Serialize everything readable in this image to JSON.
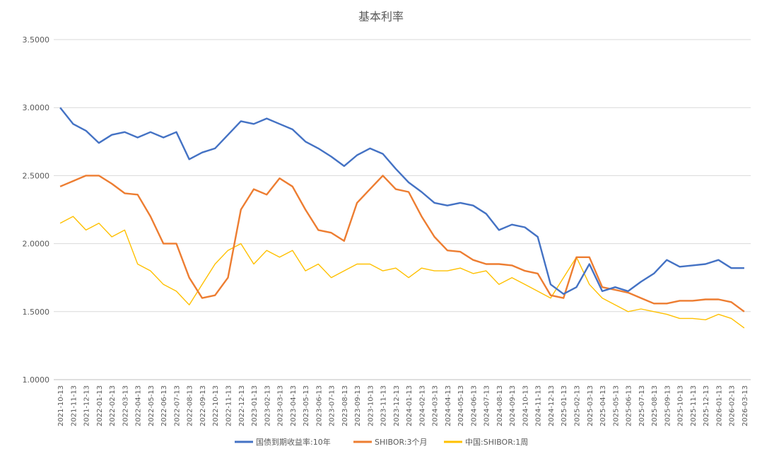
{
  "chart_data": {
    "type": "line",
    "title": "基本利率",
    "xlabel": "",
    "ylabel": "",
    "ylim": [
      1.0,
      3.5
    ],
    "yticks": [
      "1.0000",
      "1.5000",
      "2.0000",
      "2.5000",
      "3.0000",
      "3.5000"
    ],
    "grid": true,
    "legend_position": "bottom",
    "x_categories": [
      "2021-10-13",
      "2021-11-13",
      "2021-12-13",
      "2022-01-13",
      "2022-02-13",
      "2022-03-13",
      "2022-04-13",
      "2022-05-13",
      "2022-06-13",
      "2022-07-13",
      "2022-08-13",
      "2022-09-13",
      "2022-10-13",
      "2022-11-13",
      "2022-12-13",
      "2023-01-13",
      "2023-02-13",
      "2023-03-13",
      "2023-04-13",
      "2023-05-13",
      "2023-06-13",
      "2023-07-13",
      "2023-08-13",
      "2023-09-13",
      "2023-10-13",
      "2023-11-13",
      "2023-12-13",
      "2024-01-13",
      "2024-02-13",
      "2024-03-13",
      "2024-04-13",
      "2024-05-13",
      "2024-06-13",
      "2024-07-13",
      "2024-08-13",
      "2024-09-13",
      "2024-10-13",
      "2024-11-13",
      "2024-12-13",
      "2025-01-13",
      "2025-02-13",
      "2025-03-13",
      "2025-04-13",
      "2025-05-13",
      "2025-06-13",
      "2025-07-13",
      "2025-08-13",
      "2025-09-13",
      "2025-10-13",
      "2025-11-13",
      "2025-12-13",
      "2026-01-13",
      "2026-02-13",
      "2026-03-13"
    ],
    "x_tick_labels": [
      "2021-10-13",
      "2021-11-13",
      "2021-12-13",
      "2022-01-13",
      "2022-02-13",
      "2022-03-13",
      "2022-04-13",
      "2022-05-13",
      "2022-06-13",
      "2022-07-13",
      "2022-08-13",
      "2022-09-13",
      "2022-10-13",
      "2022-11-13",
      "2022-12-13",
      "2023-01-13",
      "2023-02-13",
      "2023-03-13",
      "2023-04-13",
      "2023-05-13",
      "2023-06-13",
      "2023-07-13",
      "2023-08-13",
      "2023-09-13",
      "2023-10-13",
      "2023-11-13",
      "2023-12-13",
      "2024-01-13",
      "2024-02-13",
      "2024-03-13",
      "2024-04-13",
      "2024-05-13",
      "2024-06-13",
      "2024-07-13",
      "2024-08-13",
      "2024-09-13",
      "2024-10-13",
      "2024-11-13",
      "2024-12-13",
      "2025-01-13",
      "2025-02-13",
      "2025-03-13",
      "2025-04-13",
      "2025-05-13",
      "2025-06-13",
      "2025-07-13",
      "2025-08-13",
      "2025-09-13",
      "2025-10-13",
      "2025-11-13",
      "2025-12-13",
      "2026-01-13",
      "2026-02-13",
      "2026-03-13"
    ],
    "series": [
      {
        "name": "国债到期收益率:10年",
        "color": "#4472c4",
        "values": [
          3.0,
          2.88,
          2.83,
          2.74,
          2.8,
          2.82,
          2.78,
          2.82,
          2.78,
          2.82,
          2.62,
          2.67,
          2.7,
          2.8,
          2.9,
          2.88,
          2.92,
          2.88,
          2.84,
          2.75,
          2.7,
          2.64,
          2.57,
          2.65,
          2.7,
          2.66,
          2.55,
          2.45,
          2.38,
          2.3,
          2.28,
          2.3,
          2.28,
          2.22,
          2.1,
          2.14,
          2.12,
          2.05,
          1.7,
          1.63,
          1.68,
          1.85,
          1.65,
          1.68,
          1.65,
          1.72,
          1.78,
          1.88,
          1.83,
          1.84,
          1.85,
          1.88,
          1.82,
          1.82
        ]
      },
      {
        "name": "SHIBOR:3个月",
        "color": "#ed7d31",
        "values": [
          2.42,
          2.46,
          2.5,
          2.5,
          2.44,
          2.37,
          2.36,
          2.2,
          2.0,
          2.0,
          1.75,
          1.6,
          1.62,
          1.75,
          2.25,
          2.4,
          2.36,
          2.48,
          2.42,
          2.25,
          2.1,
          2.08,
          2.02,
          2.3,
          2.4,
          2.5,
          2.4,
          2.38,
          2.2,
          2.05,
          1.95,
          1.94,
          1.88,
          1.85,
          1.85,
          1.84,
          1.8,
          1.78,
          1.62,
          1.6,
          1.9,
          1.9,
          1.68,
          1.66,
          1.64,
          1.6,
          1.56,
          1.56,
          1.58,
          1.58,
          1.59,
          1.59,
          1.57,
          1.5
        ]
      },
      {
        "name": "中国:SHIBOR:1周",
        "color": "#ffc000",
        "values": [
          2.15,
          2.2,
          2.1,
          2.15,
          2.05,
          2.1,
          1.85,
          1.8,
          1.7,
          1.65,
          1.55,
          1.7,
          1.85,
          1.95,
          2.0,
          1.85,
          1.95,
          1.9,
          1.95,
          1.8,
          1.85,
          1.75,
          1.8,
          1.85,
          1.85,
          1.8,
          1.82,
          1.75,
          1.82,
          1.8,
          1.8,
          1.82,
          1.78,
          1.8,
          1.7,
          1.75,
          1.7,
          1.65,
          1.6,
          1.75,
          1.9,
          1.7,
          1.6,
          1.55,
          1.5,
          1.52,
          1.5,
          1.48,
          1.45,
          1.45,
          1.44,
          1.48,
          1.45,
          1.38
        ]
      }
    ]
  }
}
